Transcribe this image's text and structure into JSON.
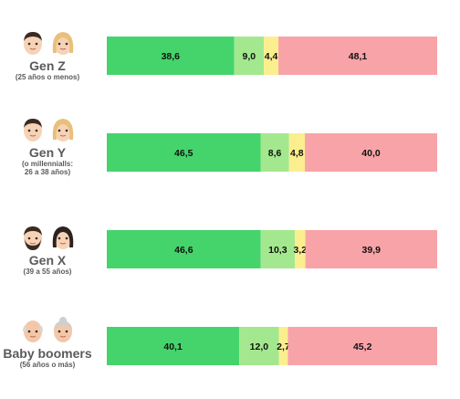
{
  "chart_data": {
    "type": "bar",
    "orientation": "horizontal",
    "stacked": true,
    "normalized": true,
    "categories": [
      {
        "name": "Gen Z",
        "sub": "(25 años o menos)"
      },
      {
        "name": "Gen Y",
        "sub": "(o millennialls: 26 a 38 años)"
      },
      {
        "name": "Gen X",
        "sub": "(39 a 55 años)"
      },
      {
        "name": "Baby boomers",
        "sub": "(56 años o más)"
      }
    ],
    "series": [
      {
        "color": "#45d46b",
        "values": [
          38.6,
          46.5,
          46.6,
          40.1
        ],
        "labels": [
          "38,6",
          "46,5",
          "46,6",
          "40,1"
        ]
      },
      {
        "color": "#a3e88e",
        "values": [
          9.0,
          8.6,
          10.3,
          12.0
        ],
        "labels": [
          "9,0",
          "8,6",
          "10,3",
          "12,0"
        ]
      },
      {
        "color": "#fbee8e",
        "values": [
          4.4,
          4.8,
          3.2,
          2.7
        ],
        "labels": [
          "4,4",
          "4,8",
          "3,2",
          "2,7"
        ]
      },
      {
        "color": "#f8a3a8",
        "values": [
          48.1,
          40.0,
          39.9,
          45.2
        ],
        "labels": [
          "48,1",
          "40,0",
          "39,9",
          "45,2"
        ]
      }
    ],
    "grid": false,
    "legend": "none"
  },
  "avatars": [
    [
      "young-man-icon",
      "young-woman-icon"
    ],
    [
      "young-man-icon",
      "young-woman-icon"
    ],
    [
      "bearded-man-icon",
      "woman-icon"
    ],
    [
      "old-man-icon",
      "old-woman-icon"
    ]
  ]
}
